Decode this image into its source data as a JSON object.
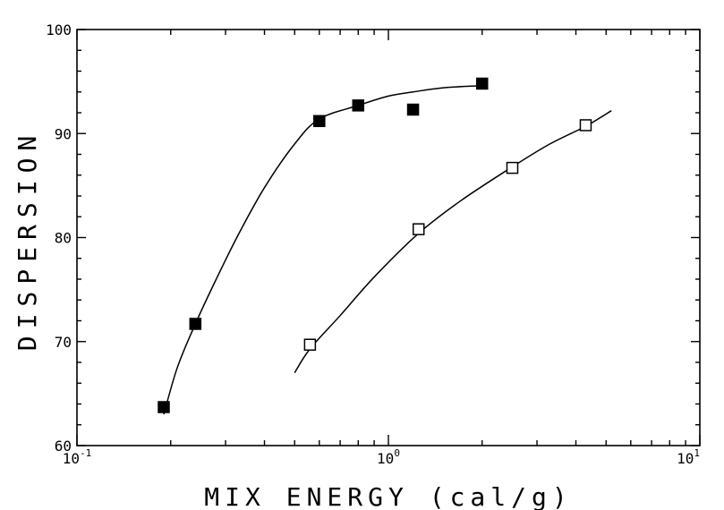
{
  "chart_data": {
    "type": "scatter",
    "title": "",
    "xlabel": "MIX ENERGY (cal/g)",
    "ylabel": "DISPERSION",
    "xscale": "log",
    "xlim": [
      0.1,
      10
    ],
    "ylim": [
      60,
      100
    ],
    "x_ticks": [
      {
        "base": "10",
        "exp": "-1",
        "value": 0.1
      },
      {
        "base": "10",
        "exp": "0",
        "value": 1
      },
      {
        "base": "10",
        "exp": "1",
        "value": 10
      }
    ],
    "y_ticks": [
      "60",
      "70",
      "80",
      "90",
      "100"
    ],
    "grid": false,
    "legend": "none",
    "series": [
      {
        "marker": "filled-square",
        "color": "#000000",
        "points": [
          {
            "x": 0.19,
            "y": 63.7
          },
          {
            "x": 0.24,
            "y": 71.7
          },
          {
            "x": 0.6,
            "y": 91.2
          },
          {
            "x": 0.8,
            "y": 92.7
          },
          {
            "x": 1.2,
            "y": 92.3
          },
          {
            "x": 2.0,
            "y": 94.8
          }
        ],
        "fit_curve": [
          {
            "x": 0.19,
            "y": 63.0
          },
          {
            "x": 0.21,
            "y": 67.5
          },
          {
            "x": 0.24,
            "y": 71.7
          },
          {
            "x": 0.28,
            "y": 76.0
          },
          {
            "x": 0.33,
            "y": 80.3
          },
          {
            "x": 0.4,
            "y": 84.8
          },
          {
            "x": 0.5,
            "y": 89.0
          },
          {
            "x": 0.6,
            "y": 91.4
          },
          {
            "x": 0.8,
            "y": 92.7
          },
          {
            "x": 1.0,
            "y": 93.6
          },
          {
            "x": 1.2,
            "y": 94.0
          },
          {
            "x": 1.5,
            "y": 94.4
          },
          {
            "x": 2.0,
            "y": 94.6
          }
        ]
      },
      {
        "marker": "open-square",
        "color": "#000000",
        "points": [
          {
            "x": 0.56,
            "y": 69.7
          },
          {
            "x": 1.25,
            "y": 80.8
          },
          {
            "x": 2.5,
            "y": 86.7
          },
          {
            "x": 4.3,
            "y": 90.8
          }
        ],
        "fit_curve": [
          {
            "x": 0.5,
            "y": 67.0
          },
          {
            "x": 0.56,
            "y": 69.3
          },
          {
            "x": 0.7,
            "y": 72.5
          },
          {
            "x": 0.9,
            "y": 76.2
          },
          {
            "x": 1.25,
            "y": 80.4
          },
          {
            "x": 1.7,
            "y": 83.5
          },
          {
            "x": 2.5,
            "y": 86.8
          },
          {
            "x": 3.3,
            "y": 89.0
          },
          {
            "x": 4.3,
            "y": 90.7
          },
          {
            "x": 5.2,
            "y": 92.2
          }
        ]
      }
    ]
  }
}
